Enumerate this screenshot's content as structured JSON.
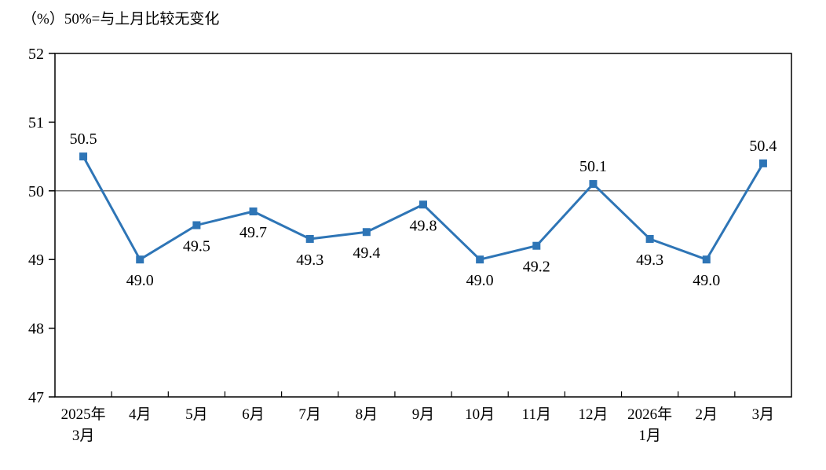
{
  "page": {
    "background": "#ffffff"
  },
  "chart_data": {
    "type": "line",
    "title": "（%）50%=与上月比较无变化",
    "categories": [
      "2025年3月",
      "4月",
      "5月",
      "6月",
      "7月",
      "8月",
      "9月",
      "10月",
      "11月",
      "12月",
      "2026年1月",
      "2月",
      "3月"
    ],
    "category_lines": [
      [
        "2025年",
        "3月"
      ],
      [
        "4月"
      ],
      [
        "5月"
      ],
      [
        "6月"
      ],
      [
        "7月"
      ],
      [
        "8月"
      ],
      [
        "9月"
      ],
      [
        "10月"
      ],
      [
        "11月"
      ],
      [
        "12月"
      ],
      [
        "2026年",
        "1月"
      ],
      [
        "2月"
      ],
      [
        "3月"
      ]
    ],
    "values": [
      50.5,
      49.0,
      49.5,
      49.7,
      49.3,
      49.4,
      49.8,
      49.0,
      49.2,
      50.1,
      49.3,
      49.0,
      50.4
    ],
    "data_labels": [
      "50.5",
      "49.0",
      "49.5",
      "49.7",
      "49.3",
      "49.4",
      "49.8",
      "49.0",
      "49.2",
      "50.1",
      "49.3",
      "49.0",
      "50.4"
    ],
    "ylabel": "",
    "xlabel": "",
    "ylim": [
      47,
      52
    ],
    "ytick_interval": 1,
    "ytick_labels": [
      "47",
      "48",
      "49",
      "50",
      "51",
      "52"
    ],
    "reference_line": 50,
    "grid": "reference-line-only",
    "legend": "none",
    "line_color": "#2E75B6",
    "marker": "square",
    "axis_color": "#000000",
    "reference_line_color": "#404040"
  }
}
